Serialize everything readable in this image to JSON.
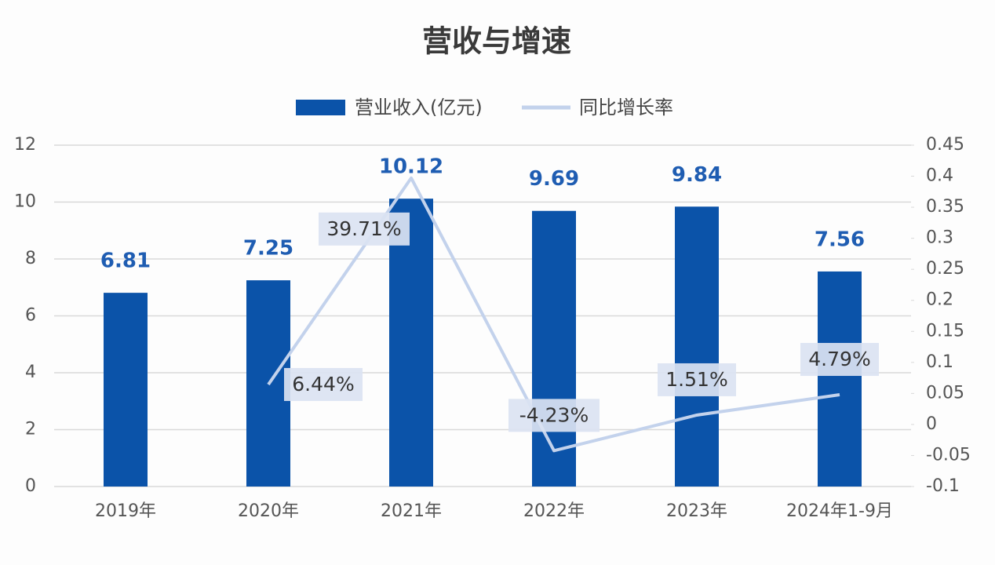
{
  "chart_data": {
    "type": "bar_line",
    "title": "营收与增速",
    "categories": [
      "2019年",
      "2020年",
      "2021年",
      "2022年",
      "2023年",
      "2024年1-9月"
    ],
    "series": [
      {
        "name": "营业收入(亿元)",
        "color": "#0b53a9",
        "values": [
          6.81,
          7.25,
          10.12,
          9.69,
          9.84,
          7.56
        ]
      },
      {
        "name": "同比增长率",
        "color": "#c3d2ec",
        "axis": "y2",
        "values": [
          null,
          0.0644,
          0.3971,
          -0.0423,
          0.0151,
          0.0479
        ],
        "value_labels": [
          null,
          "6.44%",
          "39.71%",
          "-4.23%",
          "1.51%",
          "4.79%"
        ]
      }
    ],
    "ylim": [
      0,
      12
    ],
    "yticks": [
      0,
      2,
      4,
      6,
      8,
      10,
      12
    ],
    "y2lim": [
      -0.1,
      0.45
    ],
    "y2ticks": [
      -0.1,
      -0.05,
      0,
      0.05,
      0.1,
      0.15,
      0.2,
      0.25,
      0.3,
      0.35,
      0.4,
      0.45
    ],
    "grid": true
  }
}
